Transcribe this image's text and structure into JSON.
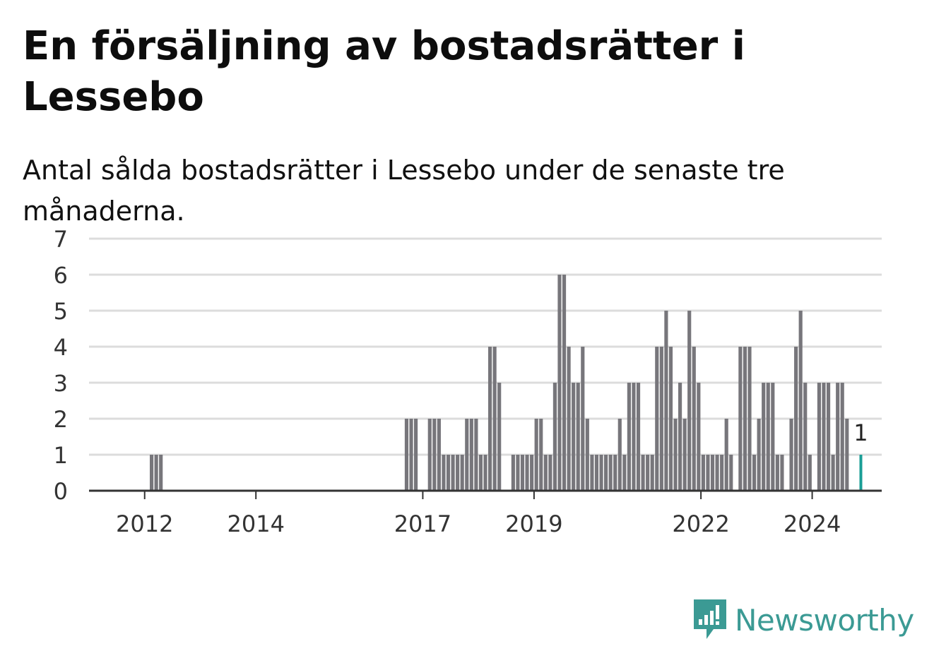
{
  "title": "En försäljning av bostadsrätter i Lessebo",
  "subtitle": "Antal sålda bostadsrätter i Lessebo under de senaste tre månaderna.",
  "brand": {
    "name": "Newsworthy",
    "color": "#3b9a94",
    "icon": "newsworthy-logo-icon"
  },
  "chart_data": {
    "type": "bar",
    "x_start": "2011-01",
    "x_end": "2025-04",
    "ylim": [
      0,
      7
    ],
    "yticks": [
      0,
      1,
      2,
      3,
      4,
      5,
      6,
      7
    ],
    "xticks": [
      "2012",
      "2014",
      "2017",
      "2019",
      "2022",
      "2024"
    ],
    "grid": true,
    "bar_color": "#77767b",
    "highlight_color": "#1a9e96",
    "highlight_label": "1",
    "values_by_month": [
      [
        "2012-02",
        1
      ],
      [
        "2012-03",
        1
      ],
      [
        "2012-04",
        1
      ],
      [
        "2016-09",
        2
      ],
      [
        "2016-10",
        2
      ],
      [
        "2016-11",
        2
      ],
      [
        "2017-02",
        2
      ],
      [
        "2017-03",
        2
      ],
      [
        "2017-04",
        2
      ],
      [
        "2017-05",
        1
      ],
      [
        "2017-06",
        1
      ],
      [
        "2017-07",
        1
      ],
      [
        "2017-08",
        1
      ],
      [
        "2017-09",
        1
      ],
      [
        "2017-10",
        2
      ],
      [
        "2017-11",
        2
      ],
      [
        "2017-12",
        2
      ],
      [
        "2018-01",
        1
      ],
      [
        "2018-02",
        1
      ],
      [
        "2018-03",
        4
      ],
      [
        "2018-04",
        4
      ],
      [
        "2018-05",
        3
      ],
      [
        "2018-08",
        1
      ],
      [
        "2018-09",
        1
      ],
      [
        "2018-10",
        1
      ],
      [
        "2018-11",
        1
      ],
      [
        "2018-12",
        1
      ],
      [
        "2019-01",
        2
      ],
      [
        "2019-02",
        2
      ],
      [
        "2019-03",
        1
      ],
      [
        "2019-04",
        1
      ],
      [
        "2019-05",
        3
      ],
      [
        "2019-06",
        6
      ],
      [
        "2019-07",
        6
      ],
      [
        "2019-08",
        4
      ],
      [
        "2019-09",
        3
      ],
      [
        "2019-10",
        3
      ],
      [
        "2019-11",
        4
      ],
      [
        "2019-12",
        2
      ],
      [
        "2020-01",
        1
      ],
      [
        "2020-02",
        1
      ],
      [
        "2020-03",
        1
      ],
      [
        "2020-04",
        1
      ],
      [
        "2020-05",
        1
      ],
      [
        "2020-06",
        1
      ],
      [
        "2020-07",
        2
      ],
      [
        "2020-08",
        1
      ],
      [
        "2020-09",
        3
      ],
      [
        "2020-10",
        3
      ],
      [
        "2020-11",
        3
      ],
      [
        "2020-12",
        1
      ],
      [
        "2021-01",
        1
      ],
      [
        "2021-02",
        1
      ],
      [
        "2021-03",
        4
      ],
      [
        "2021-04",
        4
      ],
      [
        "2021-05",
        5
      ],
      [
        "2021-06",
        4
      ],
      [
        "2021-07",
        2
      ],
      [
        "2021-08",
        3
      ],
      [
        "2021-09",
        2
      ],
      [
        "2021-10",
        5
      ],
      [
        "2021-11",
        4
      ],
      [
        "2021-12",
        3
      ],
      [
        "2022-01",
        1
      ],
      [
        "2022-02",
        1
      ],
      [
        "2022-03",
        1
      ],
      [
        "2022-04",
        1
      ],
      [
        "2022-05",
        1
      ],
      [
        "2022-06",
        2
      ],
      [
        "2022-07",
        1
      ],
      [
        "2022-09",
        4
      ],
      [
        "2022-10",
        4
      ],
      [
        "2022-11",
        4
      ],
      [
        "2022-12",
        1
      ],
      [
        "2023-01",
        2
      ],
      [
        "2023-02",
        3
      ],
      [
        "2023-03",
        3
      ],
      [
        "2023-04",
        3
      ],
      [
        "2023-05",
        1
      ],
      [
        "2023-06",
        1
      ],
      [
        "2023-08",
        2
      ],
      [
        "2023-09",
        4
      ],
      [
        "2023-10",
        5
      ],
      [
        "2023-11",
        3
      ],
      [
        "2023-12",
        1
      ],
      [
        "2024-02",
        3
      ],
      [
        "2024-03",
        3
      ],
      [
        "2024-04",
        3
      ],
      [
        "2024-05",
        1
      ],
      [
        "2024-06",
        3
      ],
      [
        "2024-07",
        3
      ],
      [
        "2024-08",
        2
      ],
      [
        "2024-11",
        1
      ]
    ],
    "highlight_month": "2024-11"
  }
}
